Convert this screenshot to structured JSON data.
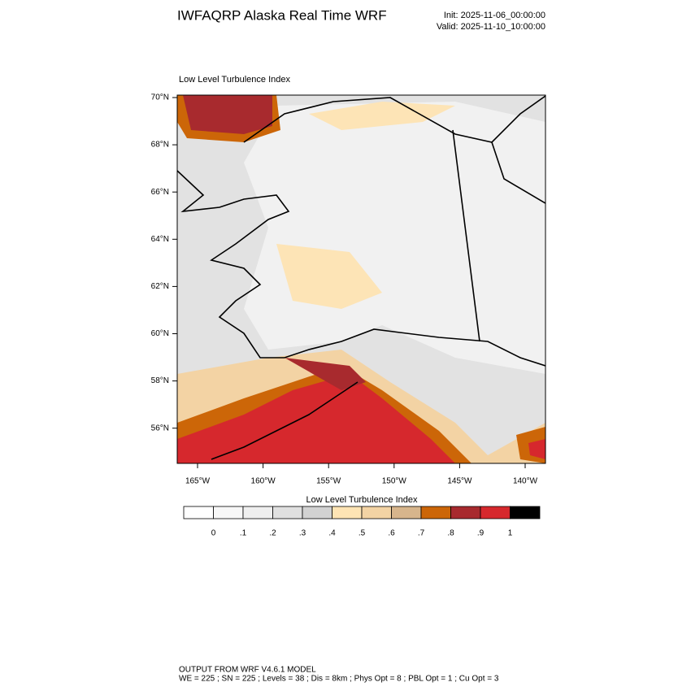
{
  "header": {
    "title": "IWFAQRP Alaska Real Time WRF",
    "init": "Init: 2025-11-06_00:00:00",
    "valid": "Valid: 2025-11-10_10:00:00"
  },
  "map": {
    "subtitle": "Low Level Turbulence Index",
    "lat_labels": [
      "70°N",
      "68°N",
      "66°N",
      "64°N",
      "62°N",
      "60°N",
      "58°N",
      "56°N"
    ],
    "lon_labels": [
      "165°W",
      "160°W",
      "155°W",
      "150°W",
      "145°W",
      "140°W"
    ]
  },
  "colorbar": {
    "title": "Low Level Turbulence Index",
    "colors": [
      "#ffffff",
      "#f7f7f7",
      "#efefef",
      "#e0e0e0",
      "#d2d2d2",
      "#fee4b4",
      "#f3d3a4",
      "#d7b58c",
      "#cc6608",
      "#a82a2e",
      "#d6282d",
      "#000000"
    ],
    "ticks": [
      {
        "value": 0,
        "label": "0"
      },
      {
        "value": 0.1,
        "label": ".1"
      },
      {
        "value": 0.2,
        "label": ".2"
      },
      {
        "value": 0.3,
        "label": ".3"
      },
      {
        "value": 0.4,
        "label": ".4"
      },
      {
        "value": 0.5,
        "label": ".5"
      },
      {
        "value": 0.6,
        "label": ".6"
      },
      {
        "value": 0.7,
        "label": ".7"
      },
      {
        "value": 0.8,
        "label": ".8"
      },
      {
        "value": 0.9,
        "label": ".9"
      },
      {
        "value": 1,
        "label": "1"
      }
    ]
  },
  "footer": {
    "line1": "OUTPUT FROM WRF V4.6.1 MODEL",
    "line2": "WE = 225 ; SN = 225 ; Levels = 38 ; Dis = 8km ; Phys Opt = 8 ; PBL Opt = 1 ; Cu Opt = 3"
  }
}
